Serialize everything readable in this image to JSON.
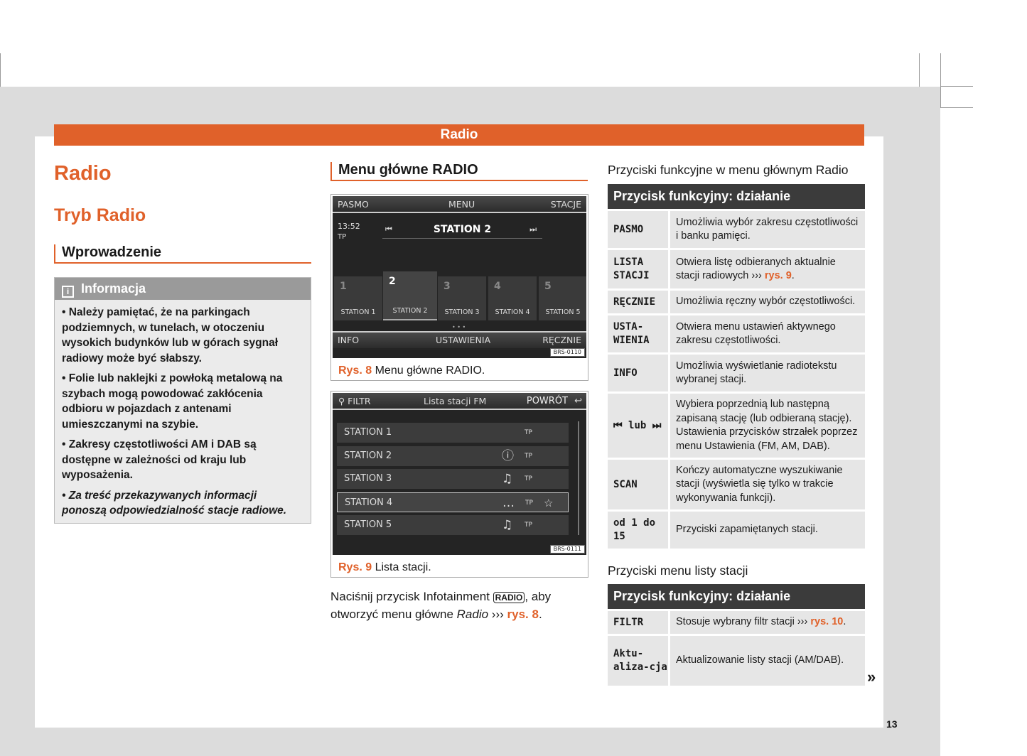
{
  "banner": "Radio",
  "title": "Radio",
  "subtitle": "Tryb Radio",
  "intro_heading": "Wprowadzenie",
  "info": {
    "heading": "Informacja",
    "items": [
      "• Należy pamiętać, że na parkingach podziemnych, w tunelach, w otoczeniu wysokich budynków lub w górach sygnał radiowy może być słabszy.",
      "• Folie lub naklejki z powłoką metalową na szybach mogą powodować zakłócenia odbioru w pojazdach z antenami umieszczanymi na szybie.",
      "• Zakresy częstotliwości AM i DAB są dostępne w zależności od kraju lub wyposażenia.",
      "• Za treść przekazywanych informacji ponoszą odpowiedzialność stacje radiowe."
    ]
  },
  "menu_heading": "Menu główne RADIO",
  "fig8": {
    "top": [
      "PASMO",
      "MENU",
      "STACJE"
    ],
    "time": "13:52",
    "tp": "TP",
    "station": "STATION 2",
    "presets": [
      {
        "n": "1",
        "l": "STATION 1"
      },
      {
        "n": "2",
        "l": "STATION 2"
      },
      {
        "n": "3",
        "l": "STATION 3"
      },
      {
        "n": "4",
        "l": "STATION 4"
      },
      {
        "n": "5",
        "l": "STATION 5"
      }
    ],
    "bottom": [
      "INFO",
      "USTAWIENIA",
      "RĘCZNIE"
    ],
    "code": "BRS-0110",
    "cap_num": "Rys. 8",
    "cap": "Menu główne RADIO."
  },
  "fig9": {
    "filter": "FILTR",
    "title": "Lista stacji FM",
    "back": "POWRÓT",
    "rows": [
      {
        "name": "STATION 1",
        "icon": "",
        "tp": "TP"
      },
      {
        "name": "STATION 2",
        "icon": "ⓘ",
        "tp": "TP"
      },
      {
        "name": "STATION 3",
        "icon": "♫",
        "tp": "TP"
      },
      {
        "name": "STATION 4",
        "icon": "…",
        "tp": "TP",
        "fav": "☆"
      },
      {
        "name": "STATION 5",
        "icon": "♫",
        "tp": "TP"
      }
    ],
    "code": "BRS-0111",
    "cap_num": "Rys. 9",
    "cap": "Lista stacji."
  },
  "body": {
    "a": "Naciśnij przycisk Infotainment ",
    "btn": "RADIO",
    "b": ", aby otworzyć menu główne ",
    "i": "Radio",
    "c": " ››› ",
    "ref": "rys. 8",
    "d": "."
  },
  "t1": {
    "title": "Przyciski funkcyjne w menu głównym Radio",
    "header": "Przycisk funkcyjny: działanie",
    "rows": [
      {
        "k": "PASMO",
        "v": "Umożliwia wybór zakresu częstotliwości i banku pamięci."
      },
      {
        "k": "LISTA STACJI",
        "v": "Otwiera listę odbieranych aktualnie stacji radiowych ››› ",
        "ref": "rys. 9"
      },
      {
        "k": "RĘCZNIE",
        "v": "Umożliwia ręczny wybór częstotliwości."
      },
      {
        "k": "USTA-WIENIA",
        "v": "Otwiera menu ustawień aktywnego zakresu częstotliwości."
      },
      {
        "k": "INFO",
        "v": "Umożliwia wyświetlanie radiotekstu wybranej stacji."
      },
      {
        "k": "⏮ lub ⏭",
        "v": "Wybiera poprzednią lub następną zapisaną stację (lub odbieraną stację). Ustawienia przycisków strzałek poprzez menu Ustawienia (FM, AM, DAB)."
      },
      {
        "k": "SCAN",
        "v": "Kończy automatyczne wyszukiwanie stacji (wyświetla się tylko w trakcie wykonywania funkcji)."
      },
      {
        "k": "od 1 do 15",
        "v": "Przyciski zapamiętanych stacji."
      }
    ]
  },
  "t2": {
    "title": "Przyciski menu listy stacji",
    "header": "Przycisk funkcyjny: działanie",
    "rows": [
      {
        "k": "FILTR",
        "v": "Stosuje wybrany filtr stacji ››› ",
        "ref": "rys. 10"
      },
      {
        "k": "Aktu-aliza-cja",
        "v": "Aktualizowanie listy stacji (AM/DAB)."
      }
    ]
  },
  "continue": "»",
  "page_number": "13"
}
